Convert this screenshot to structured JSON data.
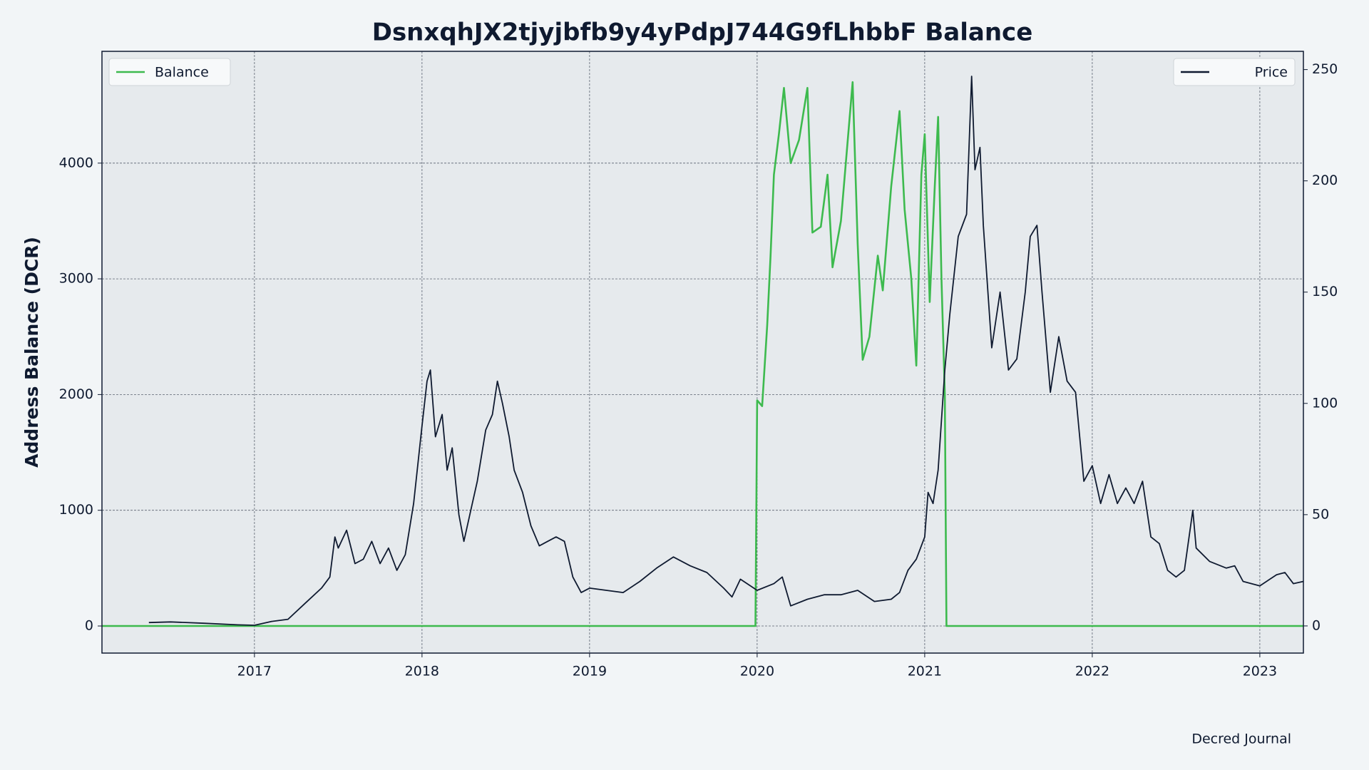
{
  "chart_data": {
    "type": "line",
    "title": "DsnxqhJX2tjyjbfb9y4yPdpJ744G9fLhbbF Balance",
    "y_label": "Address Balance (DCR)",
    "source": "Decred Journal",
    "xlim": [
      2016.09,
      2023.26
    ],
    "xticks": [
      2017,
      2018,
      2019,
      2020,
      2021,
      2022,
      2023
    ],
    "ylim": [
      -234,
      4966
    ],
    "yticks": [
      0,
      1000,
      2000,
      3000,
      4000
    ],
    "y2lim": [
      -12.2,
      258.2
    ],
    "y2ticks": [
      0,
      50,
      100,
      150,
      200,
      250
    ],
    "grid": true,
    "series": [
      {
        "name": "Balance",
        "color": "#3dba4e",
        "axis": "y",
        "legend": "upper left",
        "x": [
          2016.09,
          2019.99,
          2020.0,
          2020.03,
          2020.06,
          2020.08,
          2020.1,
          2020.13,
          2020.16,
          2020.2,
          2020.25,
          2020.3,
          2020.33,
          2020.38,
          2020.42,
          2020.45,
          2020.5,
          2020.57,
          2020.6,
          2020.63,
          2020.67,
          2020.72,
          2020.75,
          2020.8,
          2020.85,
          2020.88,
          2020.92,
          2020.95,
          2020.98,
          2021.0,
          2021.03,
          2021.06,
          2021.08,
          2021.1,
          2021.12,
          2021.13,
          2023.26
        ],
        "values": [
          0,
          0,
          1950,
          1900,
          2600,
          3200,
          3900,
          4250,
          4650,
          4000,
          4200,
          4650,
          3400,
          3450,
          3900,
          3100,
          3500,
          4700,
          3300,
          2300,
          2500,
          3200,
          2900,
          3800,
          4450,
          3600,
          3000,
          2250,
          3900,
          4250,
          2800,
          3800,
          4400,
          3000,
          2000,
          0,
          0
        ]
      },
      {
        "name": "Price",
        "color": "#0f1a30",
        "axis": "y2",
        "legend": "upper right",
        "x": [
          2016.37,
          2016.5,
          2016.7,
          2016.9,
          2017.0,
          2017.1,
          2017.2,
          2017.3,
          2017.4,
          2017.45,
          2017.48,
          2017.5,
          2017.55,
          2017.6,
          2017.65,
          2017.7,
          2017.75,
          2017.8,
          2017.85,
          2017.9,
          2017.95,
          2018.0,
          2018.03,
          2018.05,
          2018.08,
          2018.12,
          2018.15,
          2018.18,
          2018.22,
          2018.25,
          2018.3,
          2018.33,
          2018.38,
          2018.42,
          2018.45,
          2018.48,
          2018.52,
          2018.55,
          2018.6,
          2018.65,
          2018.7,
          2018.75,
          2018.8,
          2018.85,
          2018.9,
          2018.95,
          2019.0,
          2019.1,
          2019.2,
          2019.3,
          2019.4,
          2019.5,
          2019.6,
          2019.7,
          2019.8,
          2019.85,
          2019.9,
          2020.0,
          2020.1,
          2020.15,
          2020.2,
          2020.3,
          2020.4,
          2020.5,
          2020.6,
          2020.7,
          2020.8,
          2020.85,
          2020.9,
          2020.95,
          2021.0,
          2021.02,
          2021.05,
          2021.08,
          2021.12,
          2021.15,
          2021.2,
          2021.25,
          2021.28,
          2021.3,
          2021.33,
          2021.35,
          2021.4,
          2021.45,
          2021.5,
          2021.55,
          2021.6,
          2021.63,
          2021.67,
          2021.7,
          2021.75,
          2021.8,
          2021.85,
          2021.9,
          2021.95,
          2022.0,
          2022.05,
          2022.1,
          2022.15,
          2022.2,
          2022.25,
          2022.3,
          2022.35,
          2022.4,
          2022.45,
          2022.5,
          2022.55,
          2022.6,
          2022.62,
          2022.7,
          2022.8,
          2022.85,
          2022.9,
          2023.0,
          2023.1,
          2023.15,
          2023.2,
          2023.26
        ],
        "values": [
          1.5,
          1.8,
          1.2,
          0.5,
          0.3,
          2,
          3,
          10,
          17,
          22,
          40,
          35,
          43,
          28,
          30,
          38,
          28,
          35,
          25,
          32,
          55,
          90,
          110,
          115,
          85,
          95,
          70,
          80,
          50,
          38,
          55,
          65,
          88,
          95,
          110,
          100,
          85,
          70,
          60,
          45,
          36,
          38,
          40,
          38,
          22,
          15,
          17,
          16,
          15,
          20,
          26,
          31,
          27,
          24,
          17,
          13,
          21,
          16,
          19,
          22,
          9,
          12,
          14,
          14,
          16,
          11,
          12,
          15,
          25,
          30,
          40,
          60,
          55,
          70,
          115,
          140,
          175,
          185,
          247,
          205,
          215,
          180,
          125,
          150,
          115,
          120,
          150,
          175,
          180,
          150,
          105,
          130,
          110,
          105,
          65,
          72,
          55,
          68,
          55,
          62,
          55,
          65,
          40,
          37,
          25,
          22,
          25,
          52,
          35,
          29,
          26,
          27,
          20,
          18,
          23,
          24,
          19,
          20
        ]
      }
    ]
  }
}
